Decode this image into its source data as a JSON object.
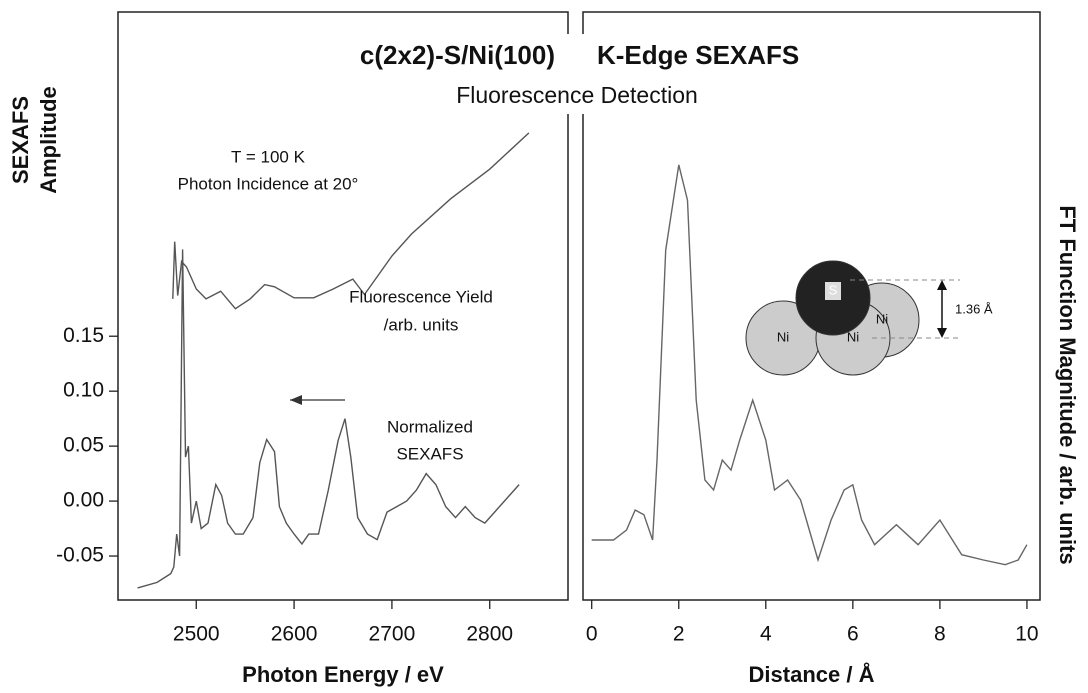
{
  "chart_data": [
    {
      "type": "line",
      "title": "c(2x2)-S/Ni(100)",
      "subtitle": "Fluorescence Detection",
      "xlabel": "Photon Energy / eV",
      "ylabel": [
        "SEXAFS",
        "Amplitude"
      ],
      "annotations": [
        "T = 100 K",
        "Photon Incidence at 20°",
        "Fluorescence Yield",
        "/arb. units",
        "Normalized",
        "SEXAFS"
      ],
      "xlim": [
        2420,
        2880
      ],
      "xticks": [
        2500,
        2600,
        2700,
        2800
      ],
      "ylim": [
        -0.09,
        0.445
      ],
      "yticks": [
        {
          "value": -0.05,
          "label": "-0.05"
        },
        {
          "value": 0,
          "label": "0.00"
        },
        {
          "value": 0.05,
          "label": "0.05"
        },
        {
          "value": 0.1,
          "label": "0.10"
        },
        {
          "value": 0.15,
          "label": "0.15"
        }
      ],
      "series": [
        {
          "color": "#555555",
          "x": [
            2476,
            2478,
            2481,
            2485,
            2490,
            2500,
            2510,
            2525,
            2540,
            2555,
            2570,
            2580,
            2600,
            2620,
            2640,
            2660,
            2672,
            2700,
            2720,
            2760,
            2800,
            2840
          ],
          "values": [
            0.184,
            0.236,
            0.187,
            0.218,
            0.213,
            0.193,
            0.184,
            0.191,
            0.175,
            0.184,
            0.197,
            0.195,
            0.185,
            0.185,
            0.193,
            0.202,
            0.188,
            0.223,
            0.243,
            0.275,
            0.302,
            0.335
          ]
        },
        {
          "color": "#555555",
          "x": [
            2440,
            2460,
            2474,
            2477,
            2480,
            2483,
            2486,
            2489,
            2492,
            2495,
            2500,
            2505,
            2512,
            2520,
            2526,
            2532,
            2540,
            2548,
            2558,
            2565,
            2572,
            2580,
            2585,
            2592,
            2600,
            2608,
            2615,
            2625,
            2635,
            2645,
            2652,
            2658,
            2665,
            2675,
            2685,
            2695,
            2705,
            2715,
            2725,
            2735,
            2745,
            2755,
            2765,
            2775,
            2785,
            2795,
            2805,
            2815,
            2825,
            2830
          ],
          "values": [
            -0.079,
            -0.074,
            -0.066,
            -0.06,
            -0.03,
            -0.05,
            0.229,
            0.04,
            0.05,
            -0.02,
            0.0,
            -0.025,
            -0.02,
            0.015,
            0.005,
            -0.02,
            -0.03,
            -0.03,
            -0.015,
            0.035,
            0.056,
            0.045,
            -0.005,
            -0.02,
            -0.03,
            -0.039,
            -0.03,
            -0.03,
            0.01,
            0.055,
            0.075,
            0.04,
            -0.015,
            -0.03,
            -0.035,
            -0.01,
            -0.005,
            0.0,
            0.01,
            0.025,
            0.015,
            -0.005,
            -0.015,
            -0.005,
            -0.015,
            -0.02,
            -0.01,
            0.0,
            0.01,
            0.015
          ]
        }
      ]
    },
    {
      "type": "line",
      "title": "K-Edge SEXAFS",
      "xlabel": "Distance / Å",
      "ylabel": "FT Function Magnitude / arb. units",
      "xlim": [
        -0.2,
        10.3
      ],
      "xticks": [
        0,
        2,
        4,
        6,
        8,
        10
      ],
      "ylim": [
        0,
        1
      ],
      "inset": {
        "atoms": [
          "S",
          "Ni",
          "Ni",
          "Ni"
        ],
        "spacing": "1.36 Å"
      },
      "series": [
        {
          "color": "#666666",
          "x": [
            0,
            0.5,
            0.8,
            1.0,
            1.2,
            1.4,
            1.5,
            1.7,
            2.0,
            2.2,
            2.4,
            2.6,
            2.8,
            3.0,
            3.2,
            3.4,
            3.7,
            4.0,
            4.2,
            4.5,
            4.8,
            5.0,
            5.2,
            5.5,
            5.8,
            6.0,
            6.2,
            6.5,
            7.0,
            7.5,
            8.0,
            8.5,
            9.0,
            9.5,
            9.8,
            10.0
          ],
          "values": [
            0.102,
            0.102,
            0.119,
            0.153,
            0.145,
            0.102,
            0.238,
            0.595,
            0.74,
            0.68,
            0.34,
            0.204,
            0.187,
            0.238,
            0.221,
            0.272,
            0.34,
            0.272,
            0.187,
            0.204,
            0.17,
            0.119,
            0.068,
            0.136,
            0.187,
            0.196,
            0.136,
            0.094,
            0.128,
            0.094,
            0.136,
            0.077,
            0.068,
            0.06,
            0.068,
            0.094
          ]
        }
      ]
    }
  ]
}
